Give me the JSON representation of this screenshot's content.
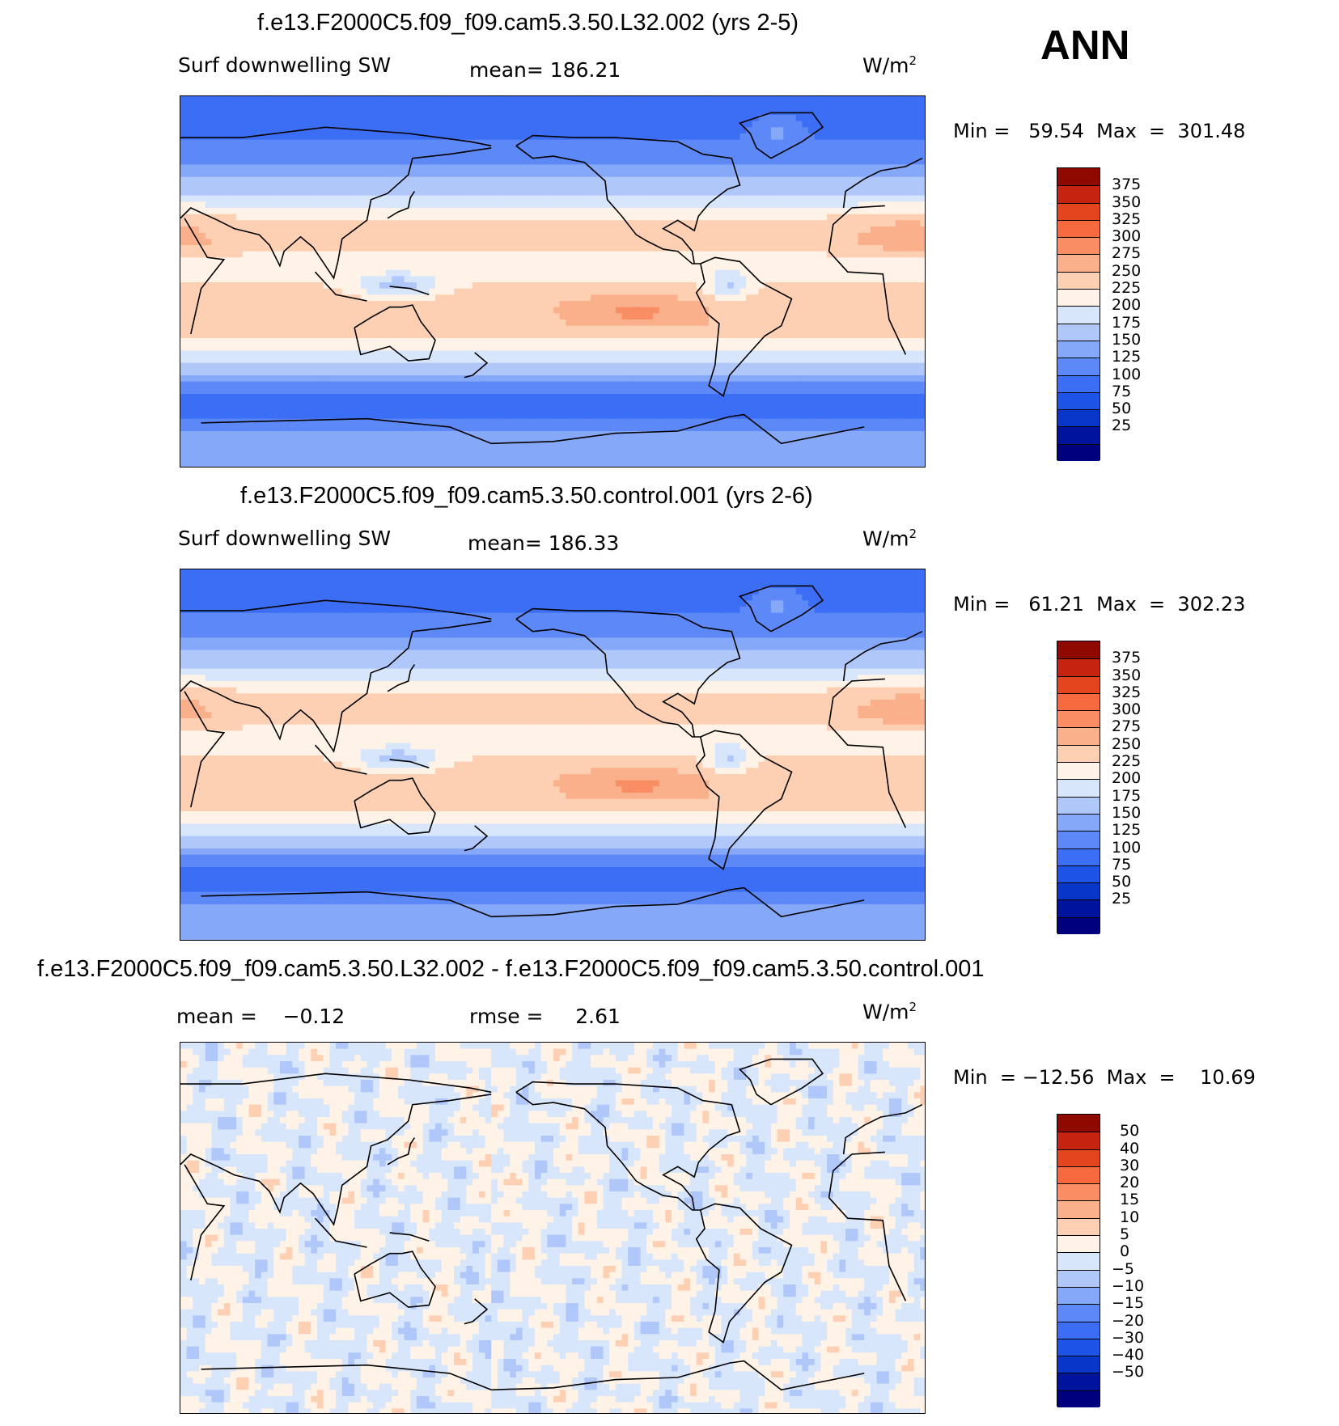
{
  "season_label": "ANN",
  "units": "W/m",
  "units_sup": "2",
  "colors": {
    "warm_scale": [
      "#00007f",
      "#00139d",
      "#0836c8",
      "#1e54e6",
      "#3b6ef5",
      "#5c89f7",
      "#86a8f8",
      "#b0c7fa",
      "#d8e6fb",
      "#fff2e6",
      "#fdd0b4",
      "#fbb08c",
      "#f98d63",
      "#f7693e",
      "#e3451f",
      "#c52510",
      "#8e0a00"
    ],
    "diff_scale": [
      "#00007f",
      "#00139d",
      "#0836c8",
      "#1e54e6",
      "#3b6ef5",
      "#5c89f7",
      "#86a8f8",
      "#b0c7fa",
      "#d8e6fb",
      "#fff2e6",
      "#fdd0b4",
      "#fbb08c",
      "#f98d63",
      "#f7693e",
      "#e3451f",
      "#c52510",
      "#8e0a00"
    ]
  },
  "panels": [
    {
      "title": "f.e13.F2000C5.f09_f09.cam5.3.50.L32.002 (yrs 2-5)",
      "variable": "Surf downwelling SW",
      "mean_text": "mean= 186.21",
      "minmax_text": "Min =   59.54  Max  =  301.48"
    },
    {
      "title": "f.e13.F2000C5.f09_f09.cam5.3.50.control.001 (yrs 2-6)",
      "variable": "Surf downwelling SW",
      "mean_text": "mean= 186.33",
      "minmax_text": "Min =   61.21  Max  =  302.23"
    },
    {
      "title": "f.e13.F2000C5.f09_f09.cam5.3.50.L32.002 - f.e13.F2000C5.f09_f09.cam5.3.50.control.001",
      "mean_text": "mean =    −0.12",
      "rmse_text": "rmse =     2.61",
      "minmax_text": "Min  = −12.56  Max  =    10.69"
    }
  ],
  "chart_data": [
    {
      "type": "heatmap",
      "title": "f.e13.F2000C5.f09_f09.cam5.3.50.L32.002 (yrs 2-5)",
      "variable": "Surf downwelling SW",
      "units": "W/m2",
      "mean": 186.21,
      "min": 59.54,
      "max": 301.48,
      "colorbar_levels": [
        "375",
        "350",
        "325",
        "300",
        "275",
        "250",
        "225",
        "200",
        "175",
        "150",
        "125",
        "100",
        "75",
        "50",
        "25"
      ],
      "zonal_bands": [
        {
          "lat": 80,
          "value": 95
        },
        {
          "lat": 60,
          "value": 110
        },
        {
          "lat": 45,
          "value": 160
        },
        {
          "lat": 25,
          "value": 235
        },
        {
          "lat": 10,
          "value": 225
        },
        {
          "lat": -15,
          "value": 250
        },
        {
          "lat": -35,
          "value": 200
        },
        {
          "lat": -50,
          "value": 120
        },
        {
          "lat": -65,
          "value": 95
        },
        {
          "lat": -80,
          "value": 150
        }
      ]
    },
    {
      "type": "heatmap",
      "title": "f.e13.F2000C5.f09_f09.cam5.3.50.control.001 (yrs 2-6)",
      "variable": "Surf downwelling SW",
      "units": "W/m2",
      "mean": 186.33,
      "min": 61.21,
      "max": 302.23,
      "colorbar_levels": [
        "375",
        "350",
        "325",
        "300",
        "275",
        "250",
        "225",
        "200",
        "175",
        "150",
        "125",
        "100",
        "75",
        "50",
        "25"
      ],
      "zonal_bands": [
        {
          "lat": 80,
          "value": 95
        },
        {
          "lat": 60,
          "value": 110
        },
        {
          "lat": 45,
          "value": 160
        },
        {
          "lat": 25,
          "value": 235
        },
        {
          "lat": 10,
          "value": 225
        },
        {
          "lat": -15,
          "value": 250
        },
        {
          "lat": -35,
          "value": 200
        },
        {
          "lat": -50,
          "value": 120
        },
        {
          "lat": -65,
          "value": 95
        },
        {
          "lat": -80,
          "value": 150
        }
      ]
    },
    {
      "type": "heatmap",
      "title": "f.e13.F2000C5.f09_f09.cam5.3.50.L32.002 - f.e13.F2000C5.f09_f09.cam5.3.50.control.001",
      "units": "W/m2",
      "mean": -0.12,
      "rmse": 2.61,
      "min": -12.56,
      "max": 10.69,
      "colorbar_levels": [
        "50",
        "40",
        "30",
        "20",
        "15",
        "10",
        "5",
        "0",
        "−5",
        "−10",
        "−15",
        "−20",
        "−30",
        "−40",
        "−50"
      ]
    }
  ]
}
